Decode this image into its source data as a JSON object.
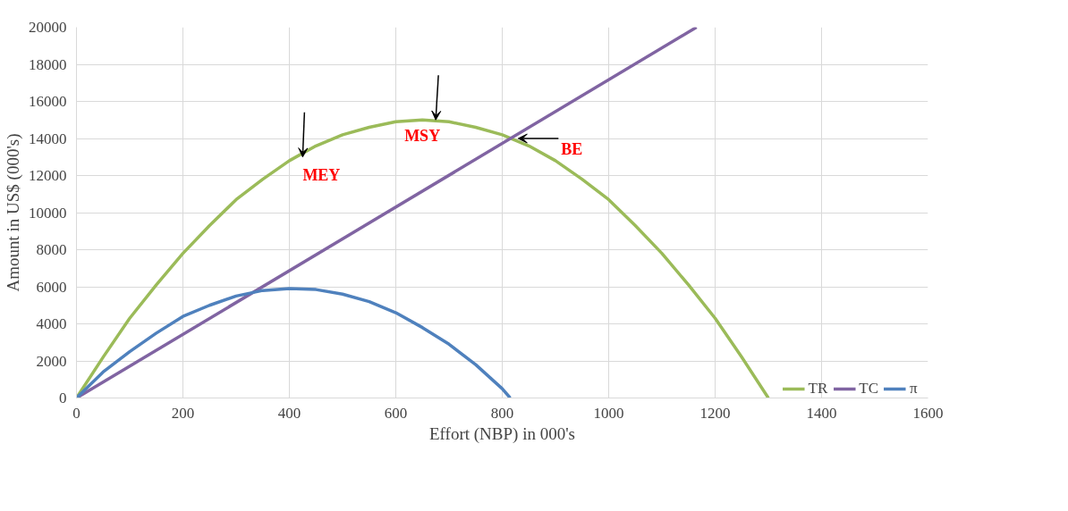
{
  "chart_data": {
    "type": "line",
    "xlabel": "Effort (NBP) in 000's",
    "ylabel": "Amount in US$ (000's)",
    "xlim": [
      0,
      1600
    ],
    "xticks": [
      0,
      200,
      400,
      600,
      800,
      1000,
      1200,
      1400,
      1600
    ],
    "ylim": [
      0,
      20000
    ],
    "yticks": [
      0,
      2000,
      4000,
      6000,
      8000,
      10000,
      12000,
      14000,
      16000,
      18000,
      20000
    ],
    "grid": true,
    "legend": "bottom right",
    "series": [
      {
        "name": "TR",
        "color": "#9bbb59",
        "x": [
          0,
          50,
          100,
          150,
          200,
          250,
          300,
          350,
          400,
          450,
          500,
          550,
          600,
          650,
          700,
          750,
          800,
          850,
          900,
          950,
          1000,
          1050,
          1100,
          1150,
          1200,
          1250,
          1300
        ],
        "values": [
          0,
          2200,
          4300,
          6100,
          7800,
          9300,
          10700,
          11800,
          12800,
          13600,
          14200,
          14600,
          14900,
          15000,
          14900,
          14600,
          14200,
          13600,
          12800,
          11800,
          10700,
          9300,
          7800,
          6100,
          4300,
          2200,
          0
        ]
      },
      {
        "name": "TC",
        "color": "#8064a2",
        "x": [
          0,
          1165
        ],
        "values": [
          0,
          20000
        ]
      },
      {
        "name": "π",
        "color": "#4f81bd",
        "x": [
          0,
          50,
          100,
          150,
          200,
          250,
          300,
          350,
          400,
          450,
          500,
          550,
          600,
          650,
          700,
          750,
          800,
          815
        ],
        "values": [
          0,
          1400,
          2500,
          3500,
          4400,
          5000,
          5500,
          5800,
          5900,
          5850,
          5600,
          5200,
          4600,
          3800,
          2900,
          1800,
          500,
          0
        ]
      }
    ],
    "annotations": [
      {
        "text": "MEY",
        "x": 425,
        "y": 13000
      },
      {
        "text": "MSY",
        "x": 675,
        "y": 15000
      },
      {
        "text": "BE",
        "x": 830,
        "y": 14000
      }
    ]
  }
}
